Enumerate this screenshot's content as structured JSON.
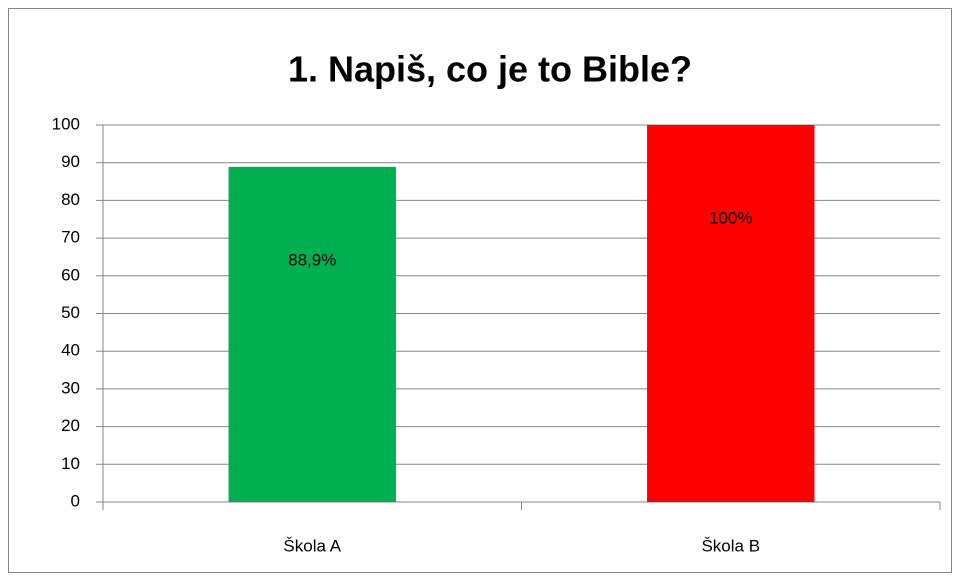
{
  "chart_data": {
    "type": "bar",
    "title": "1. Napiš, co je to Bible?",
    "categories": [
      "Škola A",
      "Škola B"
    ],
    "values": [
      88.9,
      100
    ],
    "value_labels": [
      "88,9%",
      "100%"
    ],
    "colors": [
      "#00b050",
      "#ff0000"
    ],
    "ylim": [
      0,
      100
    ],
    "yticks": [
      0,
      10,
      20,
      30,
      40,
      50,
      60,
      70,
      80,
      90,
      100
    ],
    "grid": true
  }
}
